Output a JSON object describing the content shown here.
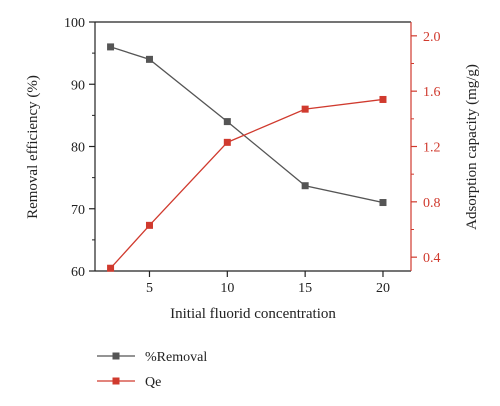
{
  "chart_data": {
    "type": "line",
    "xlabel": "Initial fluorid concentration",
    "ylabel_left": "Removal efficiency (%)",
    "ylabel_right": "Adsorption capacity (mg/g)",
    "xlim": [
      1.5,
      21.8
    ],
    "ylim_left": [
      60,
      100
    ],
    "ylim_right": [
      0.3,
      2.1
    ],
    "x_ticks": [
      5,
      10,
      15,
      20
    ],
    "x_tick_labels": [
      "5",
      "10",
      "15",
      "20"
    ],
    "y_left_ticks": [
      60,
      70,
      80,
      90,
      100
    ],
    "y_left_tick_labels": [
      "60",
      "70",
      "80",
      "90",
      "100"
    ],
    "y_right_ticks": [
      0.4,
      0.8,
      1.2,
      1.6,
      2.0
    ],
    "y_right_tick_labels": [
      "0.4",
      "0.8",
      "1.2",
      "1.6",
      "2.0"
    ],
    "grid": false,
    "legend_position": "bottom",
    "series": [
      {
        "name": "%Removal",
        "axis": "left",
        "color": "#555555",
        "marker": "square",
        "x": [
          2.5,
          5,
          10,
          15,
          20
        ],
        "values": [
          96,
          94,
          84,
          73.7,
          71
        ]
      },
      {
        "name": "Qe",
        "axis": "right",
        "color": "#d03a2e",
        "marker": "square",
        "x": [
          2.5,
          5,
          10,
          15,
          20
        ],
        "values": [
          0.32,
          0.63,
          1.23,
          1.47,
          1.54
        ]
      }
    ]
  }
}
